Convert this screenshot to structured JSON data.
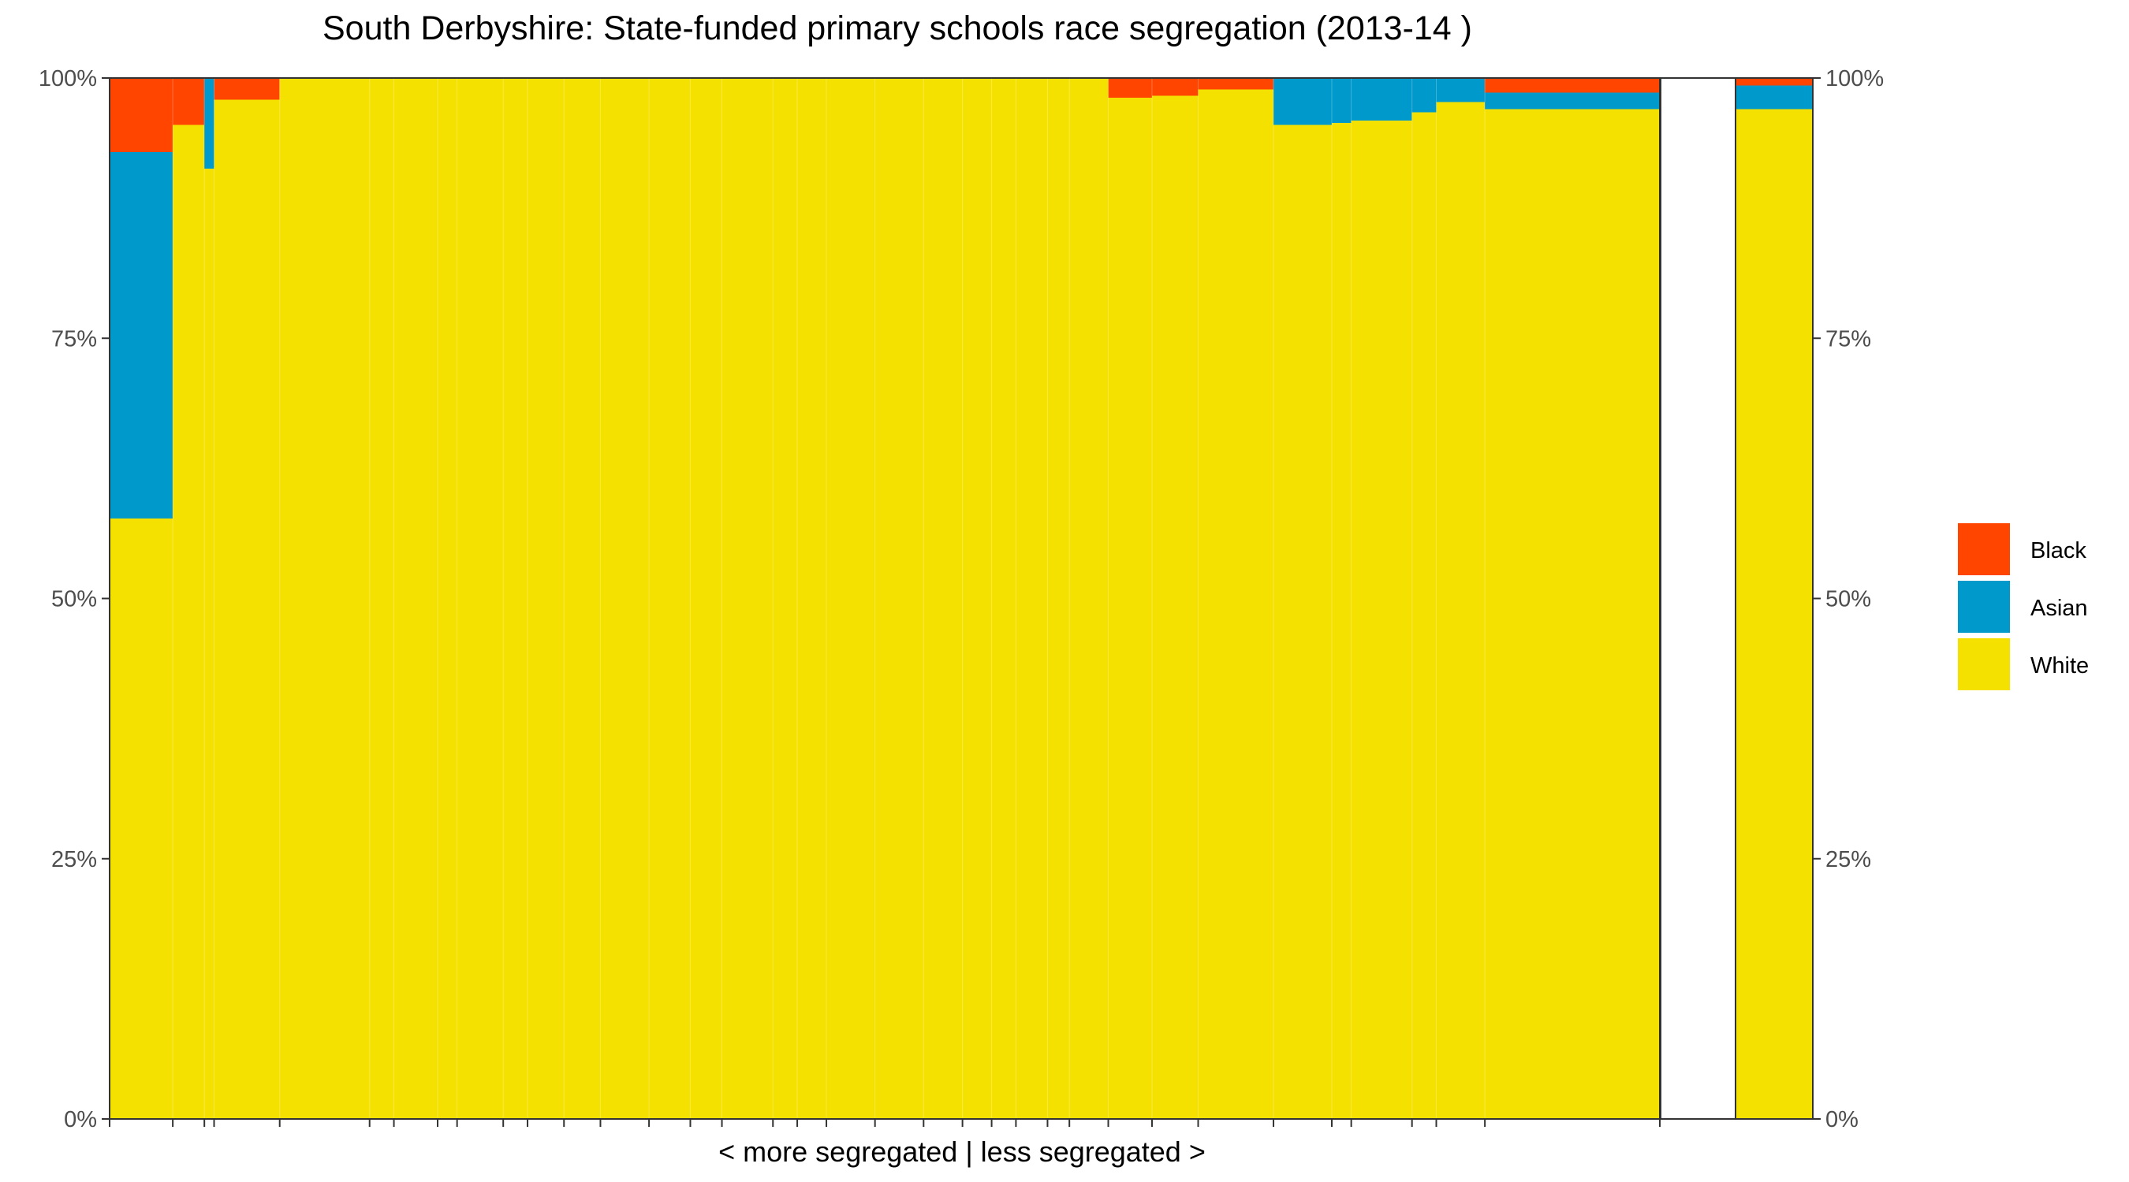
{
  "chart_data": {
    "type": "bar",
    "subtype": "stacked-100-percent-variable-width",
    "title": "South Derbyshire: State-funded primary schools race segregation (2013-14 )",
    "xlabel": "< more segregated | less segregated >",
    "ylabel": "",
    "ylim": [
      0,
      1
    ],
    "yticks": [
      "0%",
      "25%",
      "50%",
      "75%",
      "100%"
    ],
    "legend_position": "right",
    "series": [
      {
        "name": "Black",
        "color": "#FF4500"
      },
      {
        "name": "Asian",
        "color": "#0099CC"
      },
      {
        "name": "White",
        "color": "#F5E100"
      }
    ],
    "schools": [
      {
        "w": 2.6,
        "white": 0.577,
        "asian": 0.352,
        "black": 0.071
      },
      {
        "w": 1.3,
        "white": 0.955,
        "asian": 0.0,
        "black": 0.045
      },
      {
        "w": 0.4,
        "white": 0.913,
        "asian": 0.087,
        "black": 0.0
      },
      {
        "w": 2.7,
        "white": 0.979,
        "asian": 0.0,
        "black": 0.021
      },
      {
        "w": 3.7,
        "white": 1.0,
        "asian": 0.0,
        "black": 0.0
      },
      {
        "w": 1.0,
        "white": 1.0,
        "asian": 0.0,
        "black": 0.0
      },
      {
        "w": 1.8,
        "white": 1.0,
        "asian": 0.0,
        "black": 0.0
      },
      {
        "w": 0.8,
        "white": 1.0,
        "asian": 0.0,
        "black": 0.0
      },
      {
        "w": 1.9,
        "white": 1.0,
        "asian": 0.0,
        "black": 0.0
      },
      {
        "w": 1.0,
        "white": 1.0,
        "asian": 0.0,
        "black": 0.0
      },
      {
        "w": 1.5,
        "white": 1.0,
        "asian": 0.0,
        "black": 0.0
      },
      {
        "w": 1.5,
        "white": 1.0,
        "asian": 0.0,
        "black": 0.0
      },
      {
        "w": 2.0,
        "white": 1.0,
        "asian": 0.0,
        "black": 0.0
      },
      {
        "w": 1.7,
        "white": 1.0,
        "asian": 0.0,
        "black": 0.0
      },
      {
        "w": 1.3,
        "white": 1.0,
        "asian": 0.0,
        "black": 0.0
      },
      {
        "w": 2.1,
        "white": 1.0,
        "asian": 0.0,
        "black": 0.0
      },
      {
        "w": 1.0,
        "white": 1.0,
        "asian": 0.0,
        "black": 0.0
      },
      {
        "w": 1.2,
        "white": 1.0,
        "asian": 0.0,
        "black": 0.0
      },
      {
        "w": 2.0,
        "white": 1.0,
        "asian": 0.0,
        "black": 0.0
      },
      {
        "w": 2.0,
        "white": 1.0,
        "asian": 0.0,
        "black": 0.0
      },
      {
        "w": 1.6,
        "white": 1.0,
        "asian": 0.0,
        "black": 0.0
      },
      {
        "w": 1.2,
        "white": 1.0,
        "asian": 0.0,
        "black": 0.0
      },
      {
        "w": 1.0,
        "white": 1.0,
        "asian": 0.0,
        "black": 0.0
      },
      {
        "w": 1.3,
        "white": 1.0,
        "asian": 0.0,
        "black": 0.0
      },
      {
        "w": 0.9,
        "white": 1.0,
        "asian": 0.0,
        "black": 0.0
      },
      {
        "w": 1.6,
        "white": 1.0,
        "asian": 0.0,
        "black": 0.0
      },
      {
        "w": 1.8,
        "white": 0.981,
        "asian": 0.0,
        "black": 0.019
      },
      {
        "w": 1.9,
        "white": 0.983,
        "asian": 0.0,
        "black": 0.017
      },
      {
        "w": 3.1,
        "white": 0.989,
        "asian": 0.0,
        "black": 0.011
      },
      {
        "w": 2.4,
        "white": 0.955,
        "asian": 0.045,
        "black": 0.0
      },
      {
        "w": 0.8,
        "white": 0.957,
        "asian": 0.043,
        "black": 0.0
      },
      {
        "w": 2.5,
        "white": 0.959,
        "asian": 0.041,
        "black": 0.0
      },
      {
        "w": 1.0,
        "white": 0.967,
        "asian": 0.033,
        "black": 0.0
      },
      {
        "w": 2.0,
        "white": 0.977,
        "asian": 0.023,
        "black": 0.0
      },
      {
        "w": 7.2,
        "white": 0.97,
        "asian": 0.016,
        "black": 0.014
      }
    ],
    "overall": {
      "white": 0.97,
      "asian": 0.023,
      "black": 0.007
    }
  }
}
